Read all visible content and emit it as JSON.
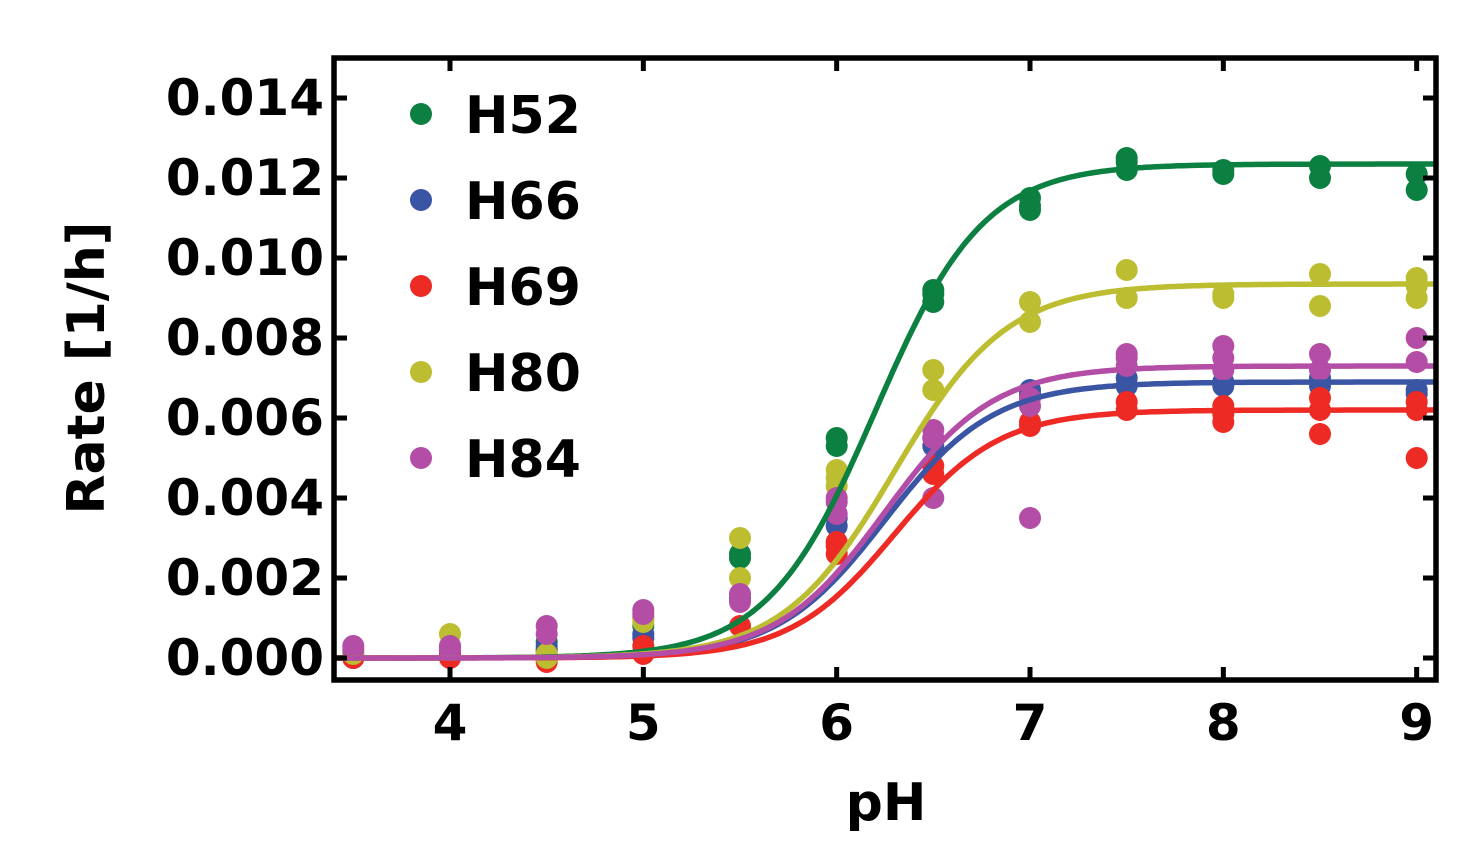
{
  "chart_data": {
    "type": "scatter",
    "title": "",
    "xlabel": "pH",
    "ylabel": "Rate [1/h]",
    "xlim": [
      3.4,
      9.1
    ],
    "ylim": [
      -0.00055,
      0.015
    ],
    "xticks": [
      4,
      5,
      6,
      7,
      8,
      9
    ],
    "xtick_labels": [
      "4",
      "5",
      "6",
      "7",
      "8",
      "9"
    ],
    "yticks": [
      0.0,
      0.002,
      0.004,
      0.006,
      0.008,
      0.01,
      0.012,
      0.014
    ],
    "ytick_labels": [
      "0.000",
      "0.002",
      "0.004",
      "0.006",
      "0.008",
      "0.010",
      "0.012",
      "0.014"
    ],
    "grid": false,
    "legend_position": "top-left",
    "fit_curves": true,
    "series": [
      {
        "name": "H52",
        "color": "#0b8040",
        "fit": {
          "ymax": 0.01235,
          "pka": 6.2,
          "n": 1.55
        },
        "points": [
          [
            3.5,
            0.0
          ],
          [
            3.5,
            0.0001
          ],
          [
            4,
            0.0001
          ],
          [
            4,
            0.0002
          ],
          [
            4.5,
            0.0002
          ],
          [
            4.5,
            0.0004
          ],
          [
            5,
            0.0008
          ],
          [
            5,
            0.001
          ],
          [
            5.5,
            0.0025
          ],
          [
            5.5,
            0.0026
          ],
          [
            6,
            0.0053
          ],
          [
            6,
            0.0055
          ],
          [
            6.5,
            0.0089
          ],
          [
            6.5,
            0.0091
          ],
          [
            6.5,
            0.0092
          ],
          [
            7,
            0.0112
          ],
          [
            7,
            0.0115
          ],
          [
            7,
            0.0113
          ],
          [
            7.5,
            0.0122
          ],
          [
            7.5,
            0.0124
          ],
          [
            7.5,
            0.0125
          ],
          [
            8,
            0.0121
          ],
          [
            8,
            0.0122
          ],
          [
            8.5,
            0.012
          ],
          [
            8.5,
            0.0123
          ],
          [
            9,
            0.0117
          ],
          [
            9,
            0.0121
          ]
        ]
      },
      {
        "name": "H66",
        "color": "#3a55a4",
        "fit": {
          "ymax": 0.0069,
          "pka": 6.25,
          "n": 1.55
        },
        "points": [
          [
            3.5,
            0.0
          ],
          [
            4,
            0.0001
          ],
          [
            4.5,
            0.0002
          ],
          [
            4.5,
            0.0003
          ],
          [
            5,
            0.0005
          ],
          [
            5,
            0.0006
          ],
          [
            5.5,
            0.0015
          ],
          [
            6,
            0.0033
          ],
          [
            6,
            0.0035
          ],
          [
            6.5,
            0.0053
          ],
          [
            6.5,
            0.0055
          ],
          [
            7,
            0.0066
          ],
          [
            7,
            0.0067
          ],
          [
            7.5,
            0.0068
          ],
          [
            7.5,
            0.007
          ],
          [
            8,
            0.0068
          ],
          [
            8,
            0.0069
          ],
          [
            8.5,
            0.0068
          ],
          [
            8.5,
            0.007
          ],
          [
            9,
            0.0066
          ],
          [
            9,
            0.0067
          ]
        ]
      },
      {
        "name": "H69",
        "color": "#ee2a24",
        "fit": {
          "ymax": 0.0062,
          "pka": 6.3,
          "n": 1.6
        },
        "points": [
          [
            3.5,
            0.0
          ],
          [
            4,
            0.0
          ],
          [
            4,
            0.0001
          ],
          [
            4.5,
            -0.0001
          ],
          [
            4.5,
            0.0001
          ],
          [
            5,
            0.0001
          ],
          [
            5,
            0.0003
          ],
          [
            5.5,
            0.0008
          ],
          [
            6,
            0.0026
          ],
          [
            6,
            0.0028
          ],
          [
            6,
            0.0029
          ],
          [
            6.5,
            0.0046
          ],
          [
            6.5,
            0.0048
          ],
          [
            7,
            0.0058
          ],
          [
            7,
            0.0059
          ],
          [
            7.5,
            0.0062
          ],
          [
            7.5,
            0.0064
          ],
          [
            8,
            0.0059
          ],
          [
            8,
            0.0061
          ],
          [
            8,
            0.0063
          ],
          [
            8.5,
            0.0056
          ],
          [
            8.5,
            0.0062
          ],
          [
            8.5,
            0.0065
          ],
          [
            9,
            0.005
          ],
          [
            9,
            0.0062
          ],
          [
            9,
            0.0064
          ]
        ]
      },
      {
        "name": "H80",
        "color": "#bcbd30",
        "fit": {
          "ymax": 0.00935,
          "pka": 6.3,
          "n": 1.5
        },
        "points": [
          [
            3.5,
            0.0001
          ],
          [
            4,
            0.0003
          ],
          [
            4,
            0.0006
          ],
          [
            4.5,
            0.0
          ],
          [
            4.5,
            0.0001
          ],
          [
            5,
            0.0009
          ],
          [
            5,
            0.001
          ],
          [
            5.5,
            0.002
          ],
          [
            5.5,
            0.003
          ],
          [
            6,
            0.0043
          ],
          [
            6,
            0.0045
          ],
          [
            6,
            0.0047
          ],
          [
            6.5,
            0.0067
          ],
          [
            6.5,
            0.0072
          ],
          [
            7,
            0.0084
          ],
          [
            7,
            0.0089
          ],
          [
            7.5,
            0.009
          ],
          [
            7.5,
            0.0097
          ],
          [
            8,
            0.009
          ],
          [
            8,
            0.0091
          ],
          [
            8.5,
            0.0088
          ],
          [
            8.5,
            0.0096
          ],
          [
            9,
            0.009
          ],
          [
            9,
            0.0093
          ],
          [
            9,
            0.0095
          ]
        ]
      },
      {
        "name": "H84",
        "color": "#b34da6",
        "fit": {
          "ymax": 0.0073,
          "pka": 6.25,
          "n": 1.55
        },
        "points": [
          [
            3.5,
            0.0002
          ],
          [
            3.5,
            0.0003
          ],
          [
            4,
            0.0002
          ],
          [
            4,
            0.0003
          ],
          [
            4.5,
            0.0006
          ],
          [
            4.5,
            0.0008
          ],
          [
            5,
            0.0011
          ],
          [
            5,
            0.0012
          ],
          [
            5.5,
            0.0014
          ],
          [
            5.5,
            0.0016
          ],
          [
            6,
            0.0036
          ],
          [
            6,
            0.0039
          ],
          [
            6,
            0.004
          ],
          [
            6.5,
            0.004
          ],
          [
            6.5,
            0.0055
          ],
          [
            6.5,
            0.0057
          ],
          [
            7,
            0.0035
          ],
          [
            7,
            0.0063
          ],
          [
            7,
            0.0065
          ],
          [
            7.5,
            0.0073
          ],
          [
            7.5,
            0.0075
          ],
          [
            7.5,
            0.0076
          ],
          [
            8,
            0.0072
          ],
          [
            8,
            0.0075
          ],
          [
            8,
            0.0078
          ],
          [
            8.5,
            0.0072
          ],
          [
            8.5,
            0.0076
          ],
          [
            9,
            0.0074
          ],
          [
            9,
            0.008
          ]
        ]
      }
    ]
  }
}
